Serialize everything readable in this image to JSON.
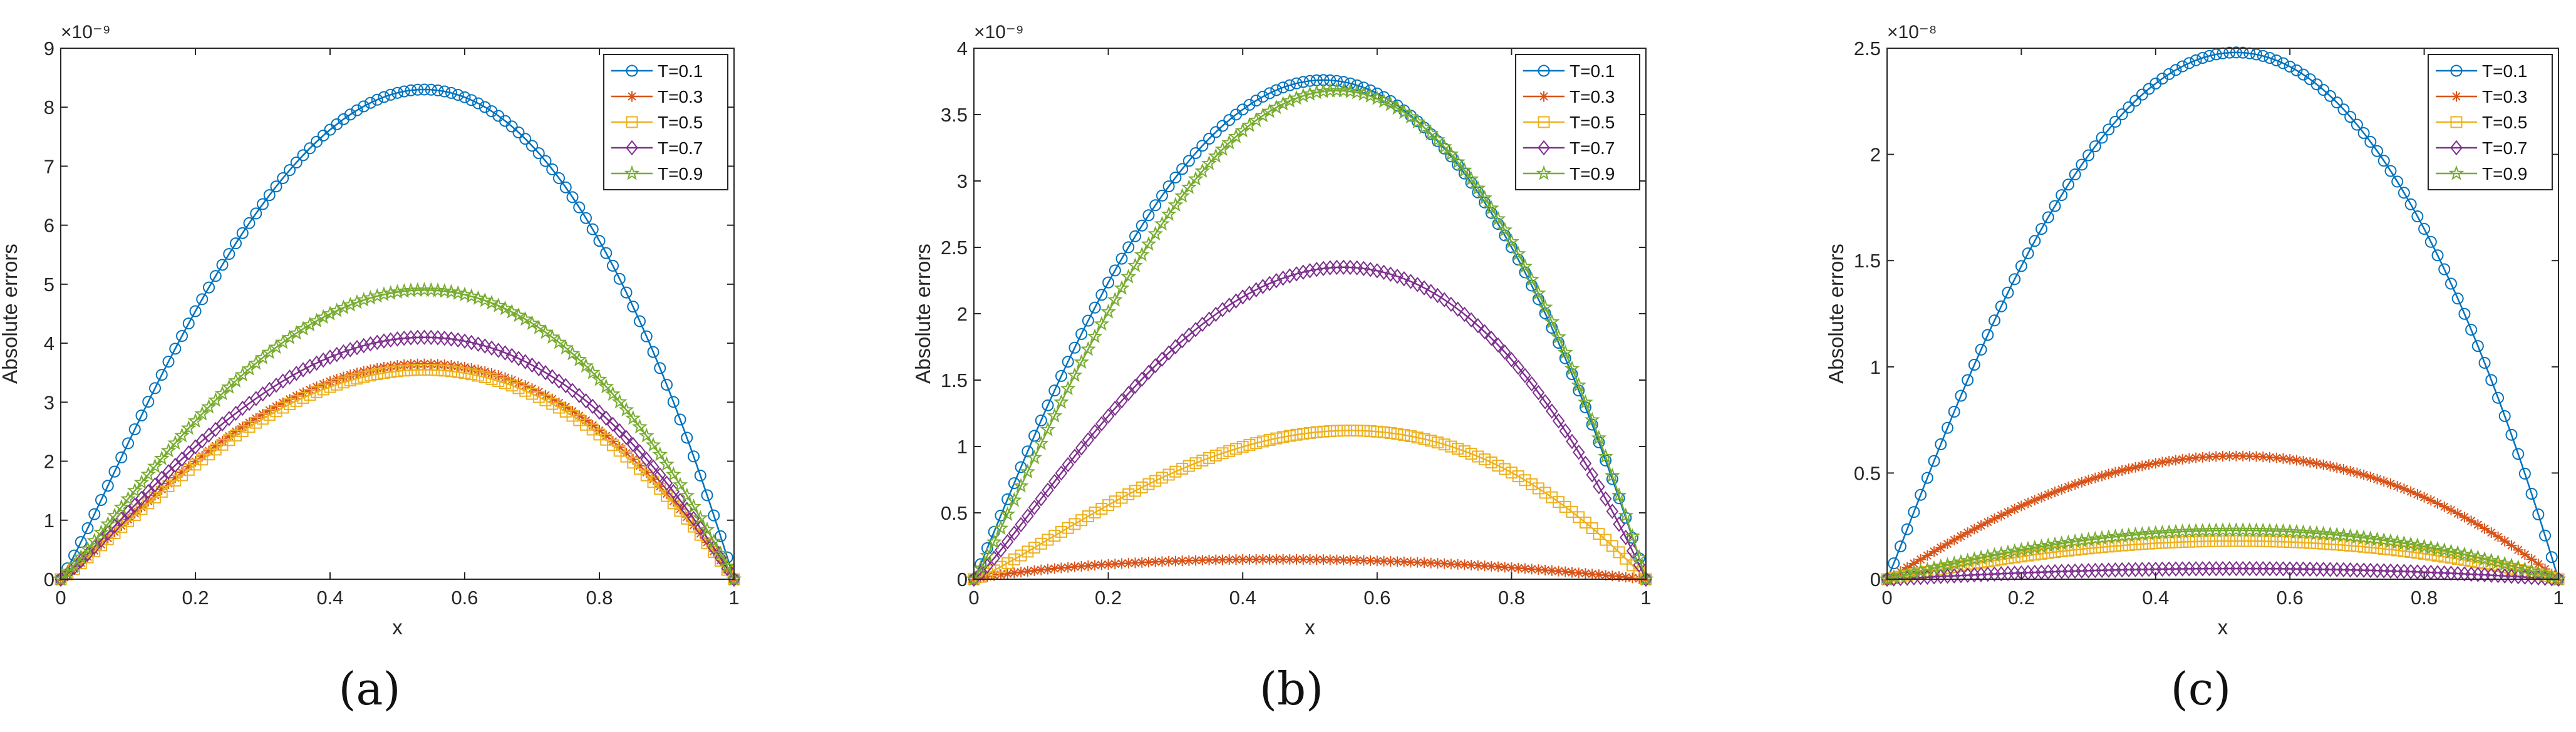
{
  "figure": {
    "captions": [
      "(a)",
      "(b)",
      "(c)"
    ]
  },
  "chart_data": [
    {
      "type": "line",
      "panel": "a",
      "xlabel": "x",
      "ylabel": "Absolute errors",
      "xlim": [
        0,
        1
      ],
      "ylim": [
        0,
        9
      ],
      "exponent_label": "×10⁻⁹",
      "xticks": [
        "0",
        "0.2",
        "0.4",
        "0.6",
        "0.8",
        "1"
      ],
      "yticks": [
        "0",
        "1",
        "2",
        "3",
        "4",
        "5",
        "6",
        "7",
        "8",
        "9"
      ],
      "legend_position": "top-right",
      "series": [
        {
          "name": "T=0.1",
          "marker": "circle",
          "color": "#0072BD",
          "peak": 8.3,
          "peak_x": 0.54
        },
        {
          "name": "T=0.3",
          "marker": "asterisk",
          "color": "#D95319",
          "peak": 3.65,
          "peak_x": 0.54
        },
        {
          "name": "T=0.5",
          "marker": "square",
          "color": "#EDB120",
          "peak": 3.55,
          "peak_x": 0.54
        },
        {
          "name": "T=0.7",
          "marker": "diamond",
          "color": "#7E2F8E",
          "peak": 4.1,
          "peak_x": 0.54
        },
        {
          "name": "T=0.9",
          "marker": "star",
          "color": "#77AC30",
          "peak": 4.9,
          "peak_x": 0.54
        }
      ]
    },
    {
      "type": "line",
      "panel": "b",
      "xlabel": "x",
      "ylabel": "Absolute errors",
      "xlim": [
        0,
        1
      ],
      "ylim": [
        0,
        4
      ],
      "exponent_label": "×10⁻⁹",
      "xticks": [
        "0",
        "0.2",
        "0.4",
        "0.6",
        "0.8",
        "1"
      ],
      "yticks": [
        "0",
        "0.5",
        "1",
        "1.5",
        "2",
        "2.5",
        "3",
        "3.5",
        "4"
      ],
      "legend_position": "top-right",
      "series": [
        {
          "name": "T=0.1",
          "marker": "circle",
          "color": "#0072BD",
          "peak": 3.76,
          "peak_x": 0.52
        },
        {
          "name": "T=0.3",
          "marker": "asterisk",
          "color": "#D95319",
          "peak": 0.15,
          "peak_x": 0.45
        },
        {
          "name": "T=0.5",
          "marker": "square",
          "color": "#EDB120",
          "peak": 1.12,
          "peak_x": 0.56
        },
        {
          "name": "T=0.7",
          "marker": "diamond",
          "color": "#7E2F8E",
          "peak": 2.35,
          "peak_x": 0.55
        },
        {
          "name": "T=0.9",
          "marker": "star",
          "color": "#77AC30",
          "peak": 3.68,
          "peak_x": 0.54
        }
      ]
    },
    {
      "type": "line",
      "panel": "c",
      "xlabel": "x",
      "ylabel": "Absolute errors",
      "xlim": [
        0,
        1
      ],
      "ylim": [
        0,
        2.5
      ],
      "exponent_label": "×10⁻⁸",
      "xticks": [
        "0",
        "0.2",
        "0.4",
        "0.6",
        "0.8",
        "1"
      ],
      "yticks": [
        "0",
        "0.5",
        "1",
        "1.5",
        "2",
        "2.5"
      ],
      "legend_position": "top-right",
      "series": [
        {
          "name": "T=0.1",
          "marker": "circle",
          "color": "#0072BD",
          "peak": 2.48,
          "peak_x": 0.52
        },
        {
          "name": "T=0.3",
          "marker": "asterisk",
          "color": "#D95319",
          "peak": 0.58,
          "peak_x": 0.52
        },
        {
          "name": "T=0.5",
          "marker": "square",
          "color": "#EDB120",
          "peak": 0.18,
          "peak_x": 0.52
        },
        {
          "name": "T=0.7",
          "marker": "diamond",
          "color": "#7E2F8E",
          "peak": 0.05,
          "peak_x": 0.52
        },
        {
          "name": "T=0.9",
          "marker": "star",
          "color": "#77AC30",
          "peak": 0.23,
          "peak_x": 0.52
        }
      ]
    }
  ]
}
